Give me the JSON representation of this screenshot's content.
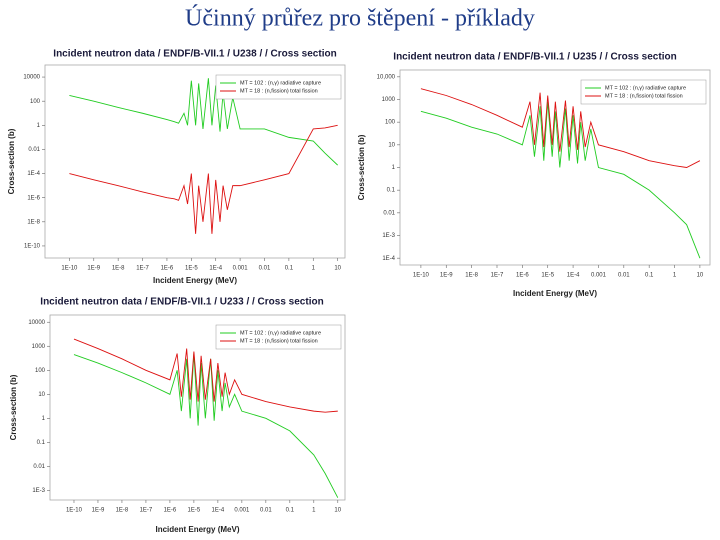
{
  "title": "Účinný průřez pro štěpení - příklady",
  "chart_data": [
    {
      "type": "line",
      "title": "Incident neutron data / ENDF/B-VII.1 / U238 / / Cross section",
      "x_label": "Incident Energy (MeV)",
      "y_label": "Cross-section (b)",
      "xscale": "log",
      "yscale": "log",
      "legend": "upper right",
      "xlim": [
        1e-11,
        20
      ],
      "ylim": [
        1e-11,
        100000
      ],
      "xticks": [
        {
          "value": 1e-10,
          "label": "1E-10"
        },
        {
          "value": 1e-09,
          "label": "1E-9"
        },
        {
          "value": 1e-08,
          "label": "1E-8"
        },
        {
          "value": 1e-07,
          "label": "1E-7"
        },
        {
          "value": 1e-06,
          "label": "1E-6"
        },
        {
          "value": 1e-05,
          "label": "1E-5"
        },
        {
          "value": 0.0001,
          "label": "1E-4"
        },
        0.001,
        0.01,
        0.1,
        1,
        10
      ],
      "yticks": [
        {
          "value": 1e-10,
          "label": "1E-10"
        },
        {
          "value": 1e-08,
          "label": "1E-8"
        },
        {
          "value": 1e-06,
          "label": "1E-6"
        },
        {
          "value": 0.0001,
          "label": "1E-4"
        },
        0.01,
        1,
        100,
        10000
      ],
      "x": [
        1e-10,
        1e-09,
        1e-08,
        1e-07,
        1e-06,
        2e-06,
        3e-06,
        5e-06,
        7e-06,
        1e-05,
        1.5e-05,
        2e-05,
        3e-05,
        5e-05,
        7e-05,
        0.0001,
        0.00015,
        0.0002,
        0.0003,
        0.0005,
        0.001,
        0.01,
        0.1,
        1,
        3,
        10
      ],
      "series": [
        {
          "name": "MT = 102 : (n,γ) radiative capture",
          "color": "#22cc22",
          "values": [
            300,
            100,
            30,
            10,
            3,
            2,
            1.5,
            10,
            1,
            5000,
            1,
            3000,
            0.5,
            8000,
            1,
            2000,
            0.3,
            500,
            0.5,
            200,
            0.5,
            0.5,
            0.1,
            0.05,
            0.005,
            0.0005
          ]
        },
        {
          "name": "MT = 18 : (n,fission) total fission",
          "color": "#dd1111",
          "values": [
            0.0001,
            3e-05,
            1e-05,
            3e-06,
            1e-06,
            8e-07,
            6e-07,
            1e-05,
            3e-07,
            0.0001,
            1e-09,
            1e-05,
            1e-08,
            0.0001,
            1e-09,
            3e-05,
            1e-08,
            1e-05,
            1e-07,
            1e-05,
            1e-05,
            3e-05,
            0.0001,
            0.5,
            0.6,
            1
          ]
        }
      ]
    },
    {
      "type": "line",
      "title": "Incident neutron data / ENDF/B-VII.1 / U235 / / Cross section",
      "x_label": "Incident Energy (MeV)",
      "y_label": "Cross-section (b)",
      "xscale": "log",
      "yscale": "log",
      "legend": "upper right",
      "xlim": [
        1.5e-11,
        25
      ],
      "ylim": [
        5e-05,
        20000
      ],
      "xticks": [
        {
          "value": 1e-10,
          "label": "1E-10"
        },
        {
          "value": 1e-09,
          "label": "1E-9"
        },
        {
          "value": 1e-08,
          "label": "1E-8"
        },
        {
          "value": 1e-07,
          "label": "1E-7"
        },
        {
          "value": 1e-06,
          "label": "1E-6"
        },
        {
          "value": 1e-05,
          "label": "1E-5"
        },
        {
          "value": 0.0001,
          "label": "1E-4"
        },
        0.001,
        0.01,
        0.1,
        1,
        10
      ],
      "yticks": [
        {
          "value": 0.0001,
          "label": "1E-4"
        },
        {
          "value": 0.001,
          "label": "1E-3"
        },
        0.01,
        0.1,
        1,
        10,
        100,
        1000,
        {
          "value": 10000,
          "label": "10,000"
        }
      ],
      "x": [
        1e-10,
        1e-09,
        1e-08,
        1e-07,
        1e-06,
        2e-06,
        3e-06,
        5e-06,
        7e-06,
        1e-05,
        1.5e-05,
        2e-05,
        3e-05,
        5e-05,
        7e-05,
        0.0001,
        0.00015,
        0.0002,
        0.0003,
        0.0005,
        0.001,
        0.01,
        0.1,
        1,
        3,
        10
      ],
      "series": [
        {
          "name": "MT = 102 : (n,γ) radiative capture",
          "color": "#22cc22",
          "values": [
            300,
            150,
            60,
            30,
            10,
            200,
            3,
            500,
            2,
            800,
            3,
            300,
            1,
            400,
            2,
            200,
            1.5,
            100,
            2,
            50,
            1,
            0.5,
            0.1,
            0.01,
            0.003,
            0.0001
          ]
        },
        {
          "name": "MT = 18 : (n,fission) total fission",
          "color": "#dd1111",
          "values": [
            3000,
            1500,
            600,
            200,
            60,
            800,
            10,
            2000,
            8,
            1500,
            10,
            800,
            5,
            900,
            8,
            500,
            6,
            300,
            8,
            100,
            10,
            5,
            2,
            1.2,
            1,
            2
          ]
        }
      ]
    },
    {
      "type": "line",
      "title": "Incident neutron data / ENDF/B-VII.1 / U233 / / Cross section",
      "x_label": "Incident Energy (MeV)",
      "y_label": "Cross-section (b)",
      "xscale": "log",
      "yscale": "log",
      "legend": "upper right",
      "xlim": [
        1e-11,
        20
      ],
      "ylim": [
        0.0004,
        20000
      ],
      "xticks": [
        {
          "value": 1e-10,
          "label": "1E-10"
        },
        {
          "value": 1e-09,
          "label": "1E-9"
        },
        {
          "value": 1e-08,
          "label": "1E-8"
        },
        {
          "value": 1e-07,
          "label": "1E-7"
        },
        {
          "value": 1e-06,
          "label": "1E-6"
        },
        {
          "value": 1e-05,
          "label": "1E-5"
        },
        {
          "value": 0.0001,
          "label": "1E-4"
        },
        0.001,
        0.01,
        0.1,
        1,
        10
      ],
      "yticks": [
        {
          "value": 0.001,
          "label": "1E-3"
        },
        0.01,
        0.1,
        1,
        10,
        100,
        1000,
        10000
      ],
      "x": [
        1e-10,
        1e-09,
        1e-08,
        1e-07,
        1e-06,
        2e-06,
        3e-06,
        5e-06,
        7e-06,
        1e-05,
        1.5e-05,
        2e-05,
        3e-05,
        5e-05,
        7e-05,
        0.0001,
        0.00015,
        0.0002,
        0.0003,
        0.0005,
        0.001,
        0.01,
        0.1,
        1,
        3,
        10
      ],
      "series": [
        {
          "name": "MT = 102 : (n,γ) radiative capture",
          "color": "#22cc22",
          "values": [
            450,
            200,
            80,
            30,
            10,
            100,
            2,
            300,
            1,
            500,
            0.5,
            200,
            1,
            300,
            0.8,
            100,
            2,
            30,
            3,
            10,
            2,
            1,
            0.3,
            0.03,
            0.005,
            0.0005
          ]
        },
        {
          "name": "MT = 18 : (n,fission) total fission",
          "color": "#dd1111",
          "values": [
            2000,
            800,
            300,
            100,
            40,
            500,
            8,
            800,
            6,
            600,
            5,
            400,
            6,
            300,
            5,
            200,
            8,
            80,
            10,
            40,
            10,
            5,
            3,
            2,
            1.8,
            2
          ]
        }
      ]
    }
  ]
}
